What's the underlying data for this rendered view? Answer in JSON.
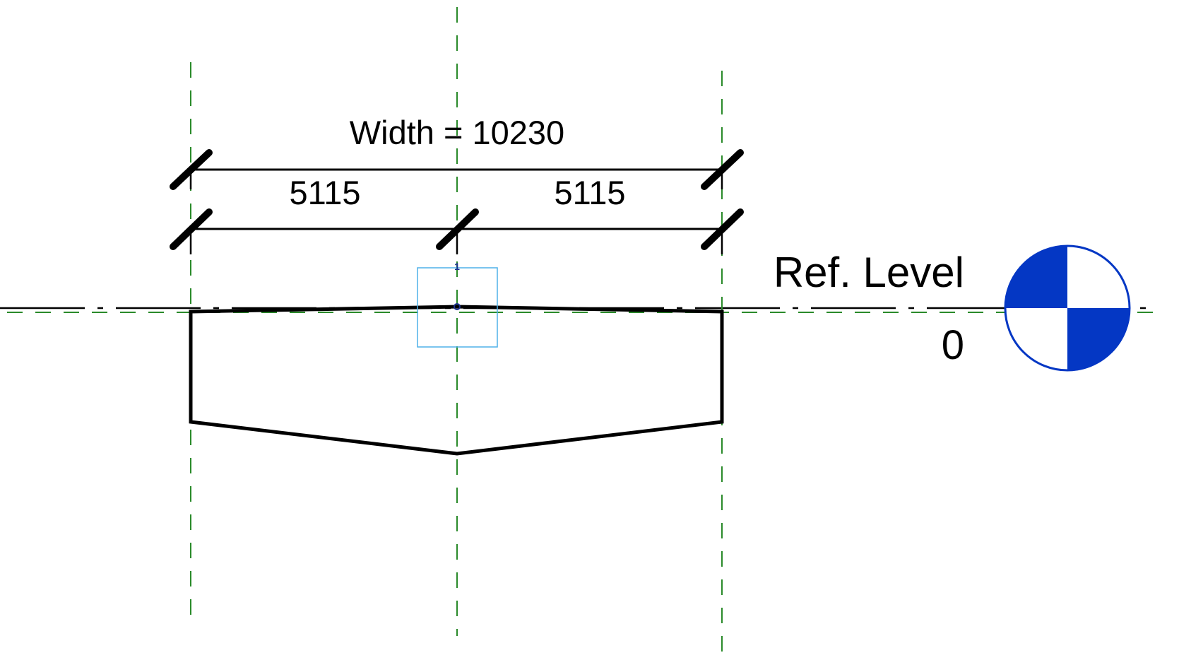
{
  "dimensions": {
    "overall_label": "Width = 10230",
    "left_segment": "5115",
    "right_segment": "5115"
  },
  "level": {
    "name": "Ref. Level",
    "elevation": "0"
  },
  "origin_marker_label": "1",
  "colors": {
    "reference_plane": "#2a8a2a",
    "level_symbol": "#0437c4",
    "selection_box": "#4fb0e8",
    "geometry": "#000000",
    "origin_marker": "#1b2f8c"
  }
}
